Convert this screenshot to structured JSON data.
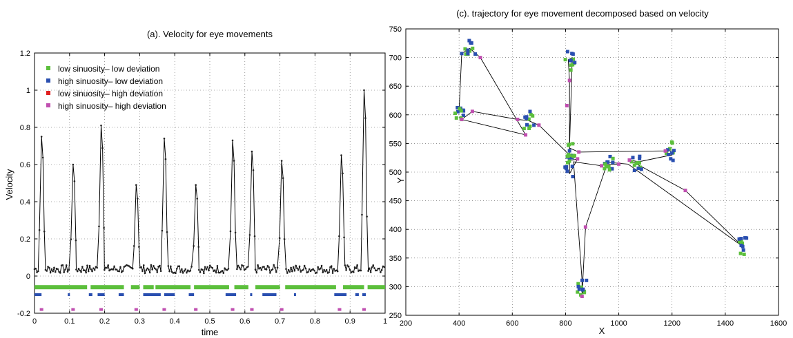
{
  "chart_data": [
    {
      "type": "line",
      "title": "(a). Velocity for eye movements",
      "xlabel": "time",
      "ylabel": "Velocity",
      "xlim": [
        0,
        1
      ],
      "ylim": [
        -0.2,
        1.2
      ],
      "x_ticks": [
        "0",
        "0.1",
        "0.2",
        "0.3",
        "0.4",
        "0.5",
        "0.6",
        "0.7",
        "0.8",
        "0.9",
        "1"
      ],
      "y_ticks": [
        "-0.2",
        "0",
        "0.2",
        "0.4",
        "0.6",
        "0.8",
        "1",
        "1.2"
      ],
      "grid": true,
      "legend_position": "top-left",
      "legend": [
        {
          "label": "low sinuosity– low deviation",
          "color": "#5cbf3c"
        },
        {
          "label": "high sinuosity– low deviation",
          "color": "#2a4fb0"
        },
        {
          "label": "low sinuosity– high deviation",
          "color": "#e02020"
        },
        {
          "label": "high sinuosity– high deviation",
          "color": "#c04fb0"
        }
      ],
      "velocity_series": {
        "color": "#000000",
        "peaks": [
          {
            "x": 0.02,
            "y": 0.75
          },
          {
            "x": 0.11,
            "y": 0.6
          },
          {
            "x": 0.19,
            "y": 0.81
          },
          {
            "x": 0.29,
            "y": 0.49
          },
          {
            "x": 0.37,
            "y": 0.74
          },
          {
            "x": 0.46,
            "y": 0.49
          },
          {
            "x": 0.565,
            "y": 0.73
          },
          {
            "x": 0.62,
            "y": 0.67
          },
          {
            "x": 0.705,
            "y": 0.62
          },
          {
            "x": 0.875,
            "y": 0.65
          },
          {
            "x": 0.94,
            "y": 1.0
          }
        ]
      },
      "class_rows": [
        {
          "class": "low sinuosity– low deviation",
          "y": -0.06,
          "color": "#5cbf3c",
          "segments": [
            [
              0.0,
              0.15
            ],
            [
              0.16,
              0.255
            ],
            [
              0.275,
              0.3
            ],
            [
              0.31,
              0.34
            ],
            [
              0.345,
              0.445
            ],
            [
              0.455,
              0.555
            ],
            [
              0.57,
              0.61
            ],
            [
              0.63,
              0.7
            ],
            [
              0.715,
              0.86
            ],
            [
              0.88,
              0.94
            ],
            [
              0.95,
              1.0
            ]
          ]
        },
        {
          "class": "high sinuosity– low deviation",
          "y": -0.1,
          "color": "#2a4fb0",
          "segments": [
            [
              0.0,
              0.02
            ],
            [
              0.095,
              0.1
            ],
            [
              0.155,
              0.165
            ],
            [
              0.18,
              0.2
            ],
            [
              0.24,
              0.255
            ],
            [
              0.31,
              0.36
            ],
            [
              0.37,
              0.4
            ],
            [
              0.44,
              0.455
            ],
            [
              0.545,
              0.575
            ],
            [
              0.615,
              0.62
            ],
            [
              0.65,
              0.69
            ],
            [
              0.74,
              0.745
            ],
            [
              0.855,
              0.89
            ],
            [
              0.915,
              0.925
            ],
            [
              0.935,
              0.945
            ]
          ]
        },
        {
          "class": "low sinuosity– high deviation",
          "y": -0.15,
          "color": "#e02020",
          "segments": []
        },
        {
          "class": "high sinuosity– high deviation",
          "y": -0.18,
          "color": "#c04fb0",
          "segments": [
            [
              0.015,
              0.025
            ],
            [
              0.105,
              0.115
            ],
            [
              0.185,
              0.195
            ],
            [
              0.285,
              0.295
            ],
            [
              0.365,
              0.375
            ],
            [
              0.455,
              0.465
            ],
            [
              0.56,
              0.57
            ],
            [
              0.615,
              0.625
            ],
            [
              0.7,
              0.71
            ],
            [
              0.865,
              0.875
            ],
            [
              0.935,
              0.945
            ]
          ]
        }
      ]
    },
    {
      "type": "scatter",
      "title": "(c). trajectory for eye movement decomposed based on velocity",
      "xlabel": "X",
      "ylabel": "Y",
      "xlim": [
        200,
        1600
      ],
      "ylim": [
        250,
        750
      ],
      "x_ticks": [
        "200",
        "400",
        "600",
        "800",
        "1000",
        "1200",
        "1400",
        "1600"
      ],
      "y_ticks": [
        "250",
        "300",
        "350",
        "400",
        "450",
        "500",
        "550",
        "600",
        "650",
        "700",
        "750"
      ],
      "grid": true,
      "path": [
        {
          "x": 400,
          "y": 605
        },
        {
          "x": 410,
          "y": 707
        },
        {
          "x": 440,
          "y": 716
        },
        {
          "x": 480,
          "y": 700
        },
        {
          "x": 650,
          "y": 565
        },
        {
          "x": 410,
          "y": 592
        },
        {
          "x": 450,
          "y": 606
        },
        {
          "x": 620,
          "y": 592
        },
        {
          "x": 660,
          "y": 590
        },
        {
          "x": 700,
          "y": 582
        },
        {
          "x": 810,
          "y": 532
        },
        {
          "x": 815,
          "y": 520
        },
        {
          "x": 845,
          "y": 523
        },
        {
          "x": 815,
          "y": 497
        },
        {
          "x": 815,
          "y": 660
        },
        {
          "x": 810,
          "y": 696
        },
        {
          "x": 825,
          "y": 700
        },
        {
          "x": 815,
          "y": 542
        },
        {
          "x": 850,
          "y": 535
        },
        {
          "x": 1175,
          "y": 537
        },
        {
          "x": 1190,
          "y": 540
        },
        {
          "x": 1200,
          "y": 530
        },
        {
          "x": 1075,
          "y": 518
        },
        {
          "x": 1040,
          "y": 521
        },
        {
          "x": 1250,
          "y": 468
        },
        {
          "x": 1470,
          "y": 368
        },
        {
          "x": 1460,
          "y": 372
        },
        {
          "x": 1035,
          "y": 514
        },
        {
          "x": 960,
          "y": 517
        },
        {
          "x": 935,
          "y": 511
        },
        {
          "x": 830,
          "y": 518
        },
        {
          "x": 862,
          "y": 312
        },
        {
          "x": 862,
          "y": 283
        },
        {
          "x": 875,
          "y": 404
        },
        {
          "x": 955,
          "y": 513
        },
        {
          "x": 1000,
          "y": 514
        }
      ],
      "clusters": [
        {
          "x": 400,
          "y": 605,
          "class": "high sinuosity– low deviation"
        },
        {
          "x": 395,
          "y": 598,
          "class": "low sinuosity– low deviation"
        },
        {
          "x": 440,
          "y": 712,
          "class": "low sinuosity– low deviation"
        },
        {
          "x": 445,
          "y": 717,
          "class": "high sinuosity– low deviation"
        },
        {
          "x": 660,
          "y": 588,
          "class": "low sinuosity– low deviation"
        },
        {
          "x": 665,
          "y": 594,
          "class": "high sinuosity– low deviation"
        },
        {
          "x": 815,
          "y": 690,
          "class": "low sinuosity– low deviation"
        },
        {
          "x": 820,
          "y": 700,
          "class": "high sinuosity– low deviation"
        },
        {
          "x": 820,
          "y": 540,
          "class": "low sinuosity– low deviation"
        },
        {
          "x": 815,
          "y": 530,
          "class": "high sinuosity– low deviation"
        },
        {
          "x": 810,
          "y": 498,
          "class": "high sinuosity– low deviation"
        },
        {
          "x": 825,
          "y": 517,
          "class": "low sinuosity– low deviation"
        },
        {
          "x": 965,
          "y": 516,
          "class": "high sinuosity– low deviation"
        },
        {
          "x": 960,
          "y": 512,
          "class": "low sinuosity– low deviation"
        },
        {
          "x": 1065,
          "y": 520,
          "class": "low sinuosity– low deviation"
        },
        {
          "x": 1070,
          "y": 516,
          "class": "high sinuosity– low deviation"
        },
        {
          "x": 1195,
          "y": 540,
          "class": "low sinuosity– low deviation"
        },
        {
          "x": 1200,
          "y": 532,
          "class": "high sinuosity– low deviation"
        },
        {
          "x": 1470,
          "y": 368,
          "class": "low sinuosity– low deviation"
        },
        {
          "x": 1465,
          "y": 372,
          "class": "high sinuosity– low deviation"
        },
        {
          "x": 862,
          "y": 295,
          "class": "low sinuosity– low deviation"
        },
        {
          "x": 862,
          "y": 305,
          "class": "high sinuosity– low deviation"
        }
      ],
      "magenta_points": [
        {
          "x": 410,
          "y": 592
        },
        {
          "x": 450,
          "y": 606
        },
        {
          "x": 480,
          "y": 700
        },
        {
          "x": 620,
          "y": 592
        },
        {
          "x": 650,
          "y": 565
        },
        {
          "x": 700,
          "y": 582
        },
        {
          "x": 805,
          "y": 616
        },
        {
          "x": 815,
          "y": 660
        },
        {
          "x": 845,
          "y": 523
        },
        {
          "x": 850,
          "y": 535
        },
        {
          "x": 875,
          "y": 404
        },
        {
          "x": 935,
          "y": 511
        },
        {
          "x": 1000,
          "y": 514
        },
        {
          "x": 1040,
          "y": 521
        },
        {
          "x": 1175,
          "y": 537
        },
        {
          "x": 1250,
          "y": 468
        },
        {
          "x": 862,
          "y": 283
        }
      ],
      "blue_points": [
        {
          "x": 410,
          "y": 707
        },
        {
          "x": 1460,
          "y": 372
        }
      ]
    }
  ]
}
